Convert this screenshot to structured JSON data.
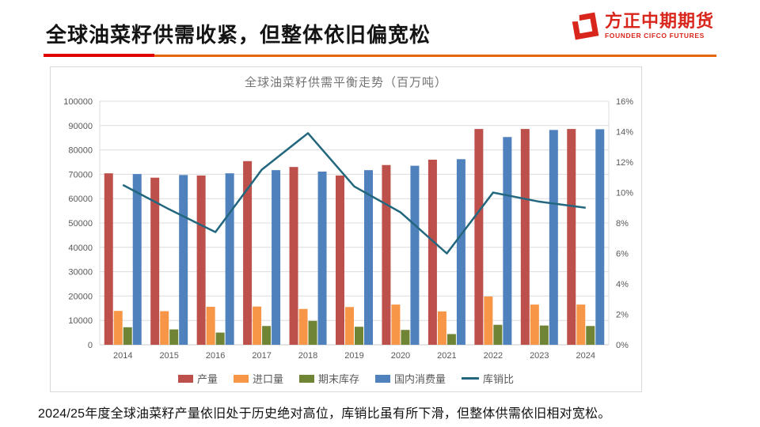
{
  "slide": {
    "title": "全球油菜籽供需收紧，但整体依旧偏宽松",
    "footer": "2024/25年度全球油菜籽产量依旧处于历史绝对高位，库销比虽有所下滑，但整体供需依旧相对宽松。"
  },
  "logo": {
    "name_cn": "方正中期期货",
    "name_en": "FOUNDER CIFCO FUTURES",
    "color": "#d9261c"
  },
  "accent_colors": {
    "title_rule_red": "#e10000",
    "title_rule_orange": "#e8650d"
  },
  "chart_data": {
    "type": "bar",
    "title": "全球油菜籽供需平衡走势（百万吨）",
    "categories": [
      "2014",
      "2015",
      "2016",
      "2017",
      "2018",
      "2019",
      "2020",
      "2021",
      "2022",
      "2023",
      "2024"
    ],
    "series": [
      {
        "name": "产量",
        "kind": "bar",
        "axis": "left",
        "color": "#be504c",
        "values": [
          70400,
          68600,
          69500,
          75400,
          73000,
          69500,
          73800,
          76000,
          88600,
          88600,
          88600
        ]
      },
      {
        "name": "进口量",
        "kind": "bar",
        "axis": "left",
        "color": "#f79646",
        "values": [
          13900,
          13800,
          15600,
          15700,
          14700,
          15500,
          16500,
          13700,
          19800,
          16500,
          16500
        ]
      },
      {
        "name": "期末库存",
        "kind": "bar",
        "axis": "left",
        "color": "#6f8434",
        "values": [
          7200,
          6300,
          5000,
          7700,
          9800,
          7400,
          6100,
          4400,
          8200,
          7900,
          7700
        ]
      },
      {
        "name": "国内消费量",
        "kind": "bar",
        "axis": "left",
        "color": "#4f81bd",
        "values": [
          70100,
          69700,
          70400,
          71700,
          71100,
          71700,
          73500,
          76200,
          85300,
          88200,
          88500
        ]
      },
      {
        "name": "库销比",
        "kind": "line",
        "axis": "right",
        "color": "#22677e",
        "values": [
          10.5,
          8.9,
          7.4,
          11.5,
          13.9,
          10.4,
          8.7,
          6.0,
          10.0,
          9.4,
          9.0
        ]
      }
    ],
    "left_axis": {
      "min": 0,
      "max": 100000,
      "step": 10000,
      "labels": [
        "0",
        "10000",
        "20000",
        "30000",
        "40000",
        "50000",
        "60000",
        "70000",
        "80000",
        "90000",
        "100000"
      ]
    },
    "right_axis": {
      "min": 0,
      "max": 16,
      "step": 2,
      "labels": [
        "0%",
        "2%",
        "4%",
        "6%",
        "8%",
        "10%",
        "12%",
        "14%",
        "16%"
      ]
    },
    "grid": true,
    "legend_position": "bottom",
    "grid_color": "#dcdcdc",
    "axis_text_color": "#595959"
  }
}
